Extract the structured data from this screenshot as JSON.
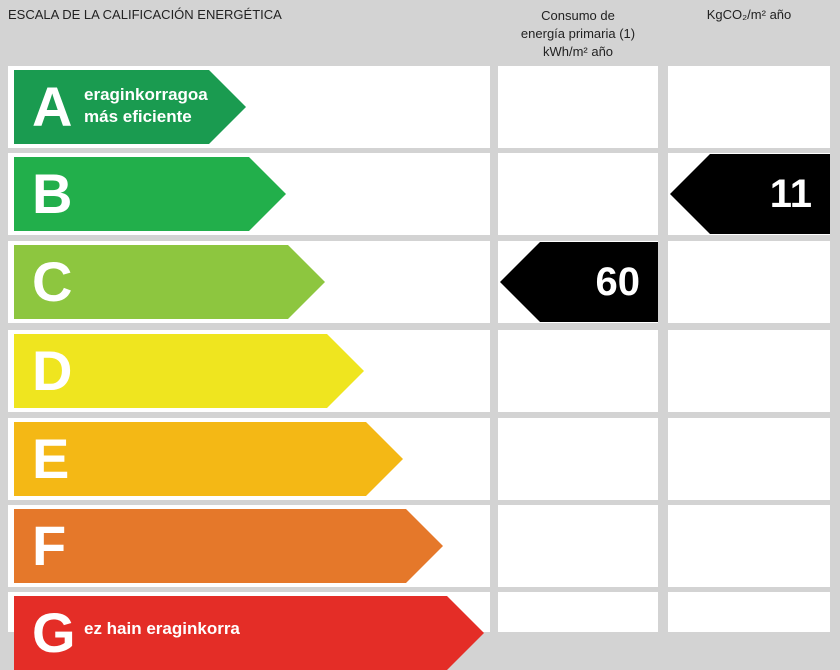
{
  "header": {
    "scale_title": "ESCALA DE LA CALIFICACIÓN ENERGÉTICA",
    "col_energy": [
      "Consumo de",
      "energía primaria (1)",
      "kWh/m² año"
    ],
    "col_emissions": "KgCO₂/m² año"
  },
  "ratings": [
    {
      "letter": "A",
      "color": "#1a9b50",
      "text": [
        "eraginkorragoa",
        "más eficiente"
      ]
    },
    {
      "letter": "B",
      "color": "#22af4b",
      "text": []
    },
    {
      "letter": "C",
      "color": "#8dc63f",
      "text": []
    },
    {
      "letter": "D",
      "color": "#efe51f",
      "text": []
    },
    {
      "letter": "E",
      "color": "#f4b815",
      "text": []
    },
    {
      "letter": "F",
      "color": "#e5782a",
      "text": []
    },
    {
      "letter": "G",
      "color": "#e42d27",
      "text": [
        "ez hain eraginkorra"
      ]
    }
  ],
  "energy_value": {
    "rating": "C",
    "value": "60"
  },
  "emissions_value": {
    "rating": "B",
    "value": "11"
  }
}
